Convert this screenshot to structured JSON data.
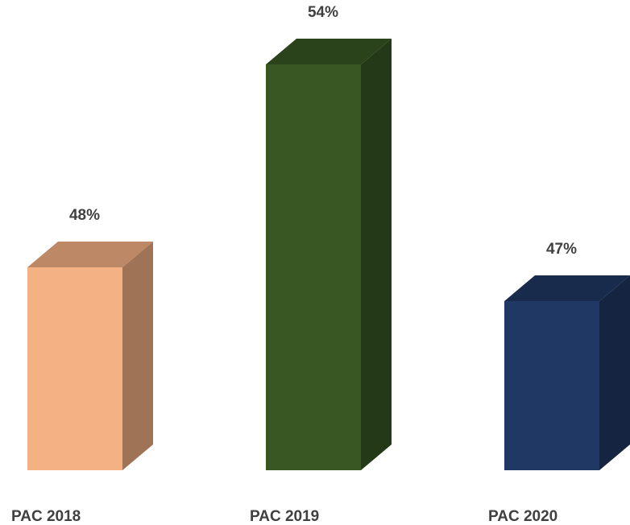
{
  "chart_data": {
    "type": "bar3d",
    "categories": [
      "PAC 2018",
      "PAC 2019",
      "PAC 2020"
    ],
    "values": [
      48,
      54,
      47
    ],
    "value_labels": [
      "48%",
      "54%",
      "47%"
    ],
    "colors": [
      "#f4b183",
      "#385723",
      "#203864"
    ],
    "ylim": [
      42,
      55
    ]
  }
}
